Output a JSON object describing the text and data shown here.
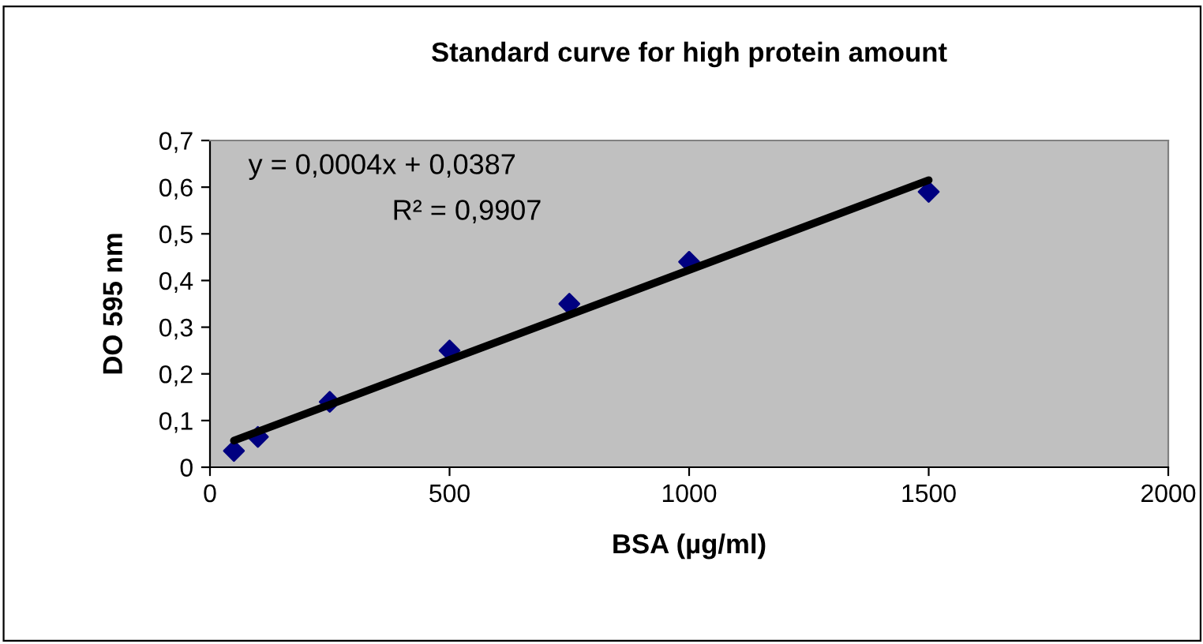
{
  "chart_data": {
    "type": "scatter",
    "title": "Standard curve for high protein amount",
    "xlabel": "BSA (µg/ml)",
    "ylabel": "DO 595 nm",
    "annotations": [
      "y = 0,0004x + 0,0387",
      "R² = 0,9907"
    ],
    "series": [
      {
        "color": "#000080",
        "marker": "diamond",
        "x": [
          50,
          100,
          250,
          500,
          750,
          1000,
          1500
        ],
        "values": [
          0.035,
          0.065,
          0.14,
          0.25,
          0.35,
          0.44,
          0.59
        ]
      },
      {
        "type": "line",
        "color": "#000000",
        "marker": "none",
        "line_style": "solid",
        "x": [
          50,
          1500
        ],
        "values": [
          0.057,
          0.615
        ]
      }
    ],
    "xlim": [
      0,
      2000
    ],
    "xticks": [
      0,
      500,
      1000,
      1500,
      2000
    ],
    "ylim": [
      0,
      0.7
    ],
    "yticks": [
      0,
      {
        "value": 0.1,
        "label": "0,1"
      },
      {
        "value": 0.2,
        "label": "0,2"
      },
      {
        "value": 0.3,
        "label": "0,3"
      },
      {
        "value": 0.4,
        "label": "0,4"
      },
      {
        "value": 0.5,
        "label": "0,5"
      },
      {
        "value": 0.6,
        "label": "0,6"
      },
      {
        "value": 0.7,
        "label": "0,7"
      }
    ],
    "grid": false,
    "legend": false
  }
}
